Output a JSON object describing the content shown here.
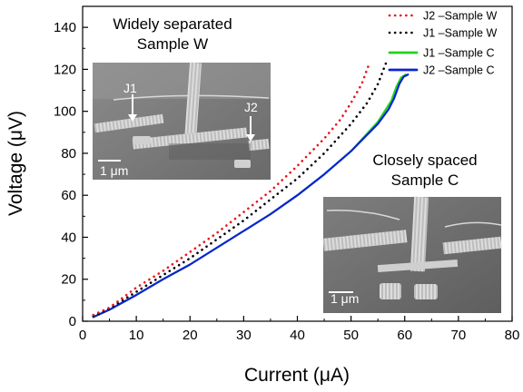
{
  "chart_data": {
    "type": "line",
    "xlabel": "Current (μA)",
    "ylabel": "Voltage (μV)",
    "xlim": [
      0,
      80
    ],
    "ylim": [
      0,
      150
    ],
    "xticks": [
      0,
      10,
      20,
      30,
      40,
      50,
      60,
      70,
      80
    ],
    "yticks": [
      0,
      20,
      40,
      60,
      80,
      100,
      120,
      140
    ],
    "grid": false,
    "legend_position": "top-right",
    "series": [
      {
        "name": "J2 –Sample W",
        "color": "#e8161e",
        "style": "dotted",
        "points": [
          [
            2,
            3
          ],
          [
            5,
            6.5
          ],
          [
            10,
            16
          ],
          [
            15,
            24
          ],
          [
            20,
            33
          ],
          [
            25,
            42
          ],
          [
            30,
            52
          ],
          [
            35,
            62
          ],
          [
            40,
            74
          ],
          [
            45,
            87
          ],
          [
            48,
            96
          ],
          [
            50,
            104
          ],
          [
            52,
            113
          ],
          [
            53.5,
            123.5
          ]
        ]
      },
      {
        "name": "J1 –Sample W",
        "color": "#000000",
        "style": "dotted",
        "points": [
          [
            2,
            2.5
          ],
          [
            5,
            6
          ],
          [
            10,
            14
          ],
          [
            15,
            22
          ],
          [
            20,
            30
          ],
          [
            25,
            39
          ],
          [
            30,
            48
          ],
          [
            35,
            58
          ],
          [
            40,
            68
          ],
          [
            45,
            80
          ],
          [
            50,
            94
          ],
          [
            53,
            104
          ],
          [
            55,
            113
          ],
          [
            56.5,
            123
          ]
        ]
      },
      {
        "name": "J1 –Sample C",
        "color": "#22d31c",
        "style": "solid",
        "points": [
          [
            2,
            2
          ],
          [
            5,
            5.5
          ],
          [
            10,
            12.5
          ],
          [
            15,
            20
          ],
          [
            20,
            27
          ],
          [
            25,
            35
          ],
          [
            30,
            43
          ],
          [
            35,
            51
          ],
          [
            40,
            60
          ],
          [
            45,
            70
          ],
          [
            50,
            81
          ],
          [
            55,
            95
          ],
          [
            57.5,
            105
          ],
          [
            58.5,
            112
          ],
          [
            59.3,
            116
          ],
          [
            60.2,
            117.5
          ]
        ]
      },
      {
        "name": "J2 –Sample C",
        "color": "#0a22d8",
        "style": "solid",
        "points": [
          [
            2,
            2
          ],
          [
            5,
            5.5
          ],
          [
            10,
            12.5
          ],
          [
            15,
            20
          ],
          [
            20,
            27
          ],
          [
            25,
            35
          ],
          [
            30,
            43
          ],
          [
            35,
            51
          ],
          [
            40,
            60
          ],
          [
            45,
            70
          ],
          [
            50,
            81
          ],
          [
            55,
            94
          ],
          [
            57,
            101
          ],
          [
            58,
            106
          ],
          [
            59,
            113
          ],
          [
            59.8,
            116.5
          ],
          [
            60.6,
            117.5
          ]
        ]
      }
    ],
    "annotations": {
      "sample_w_line1": "Widely separated",
      "sample_w_line2": "Sample W",
      "sample_c_line1": "Closely spaced",
      "sample_c_line2": "Sample C"
    },
    "inset_w": {
      "label_j1": "J1",
      "label_j2": "J2",
      "scale_bar": "1 μm"
    },
    "inset_c": {
      "scale_bar": "1 μm"
    }
  }
}
